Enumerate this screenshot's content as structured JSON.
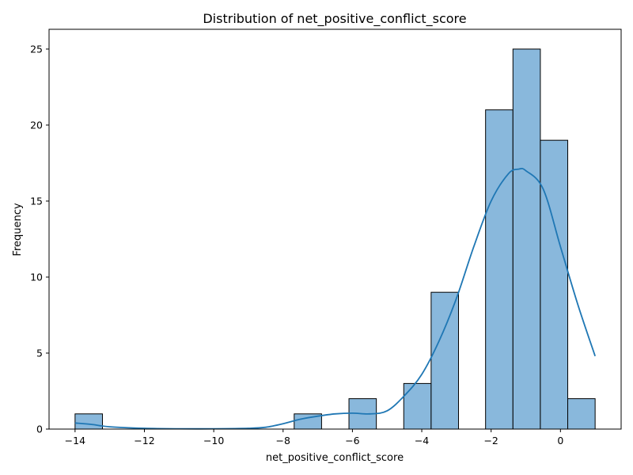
{
  "chart_data": {
    "type": "bar",
    "subtype": "histogram-with-kde",
    "title": "Distribution of net_positive_conflict_score",
    "xlabel": "net_positive_conflict_score",
    "ylabel": "Frequency",
    "xlim": [
      -14.75,
      1.75
    ],
    "ylim": [
      0,
      26.3
    ],
    "x_ticks": [
      -14,
      -12,
      -10,
      -8,
      -6,
      -4,
      -2,
      0
    ],
    "y_ticks": [
      0,
      5,
      10,
      15,
      20,
      25
    ],
    "bin_width": 0.79,
    "bins": [
      {
        "start": -14.0,
        "end": -13.21,
        "count": 1
      },
      {
        "start": -7.68,
        "end": -6.89,
        "count": 1
      },
      {
        "start": -6.1,
        "end": -5.31,
        "count": 2
      },
      {
        "start": -4.52,
        "end": -3.73,
        "count": 3
      },
      {
        "start": -3.73,
        "end": -2.94,
        "count": 9
      },
      {
        "start": -2.16,
        "end": -1.37,
        "count": 21
      },
      {
        "start": -1.37,
        "end": -0.58,
        "count": 25
      },
      {
        "start": -0.58,
        "end": 0.21,
        "count": 19
      },
      {
        "start": 0.21,
        "end": 1.0,
        "count": 2
      }
    ],
    "kde": {
      "x": [
        -14,
        -13.5,
        -13,
        -12,
        -11,
        -10,
        -9,
        -8.5,
        -8,
        -7.5,
        -7,
        -6.5,
        -6,
        -5.5,
        -5,
        -4.5,
        -4,
        -3.5,
        -3,
        -2.5,
        -2,
        -1.5,
        -1.2,
        -1,
        -0.5,
        0,
        0.5,
        1
      ],
      "y": [
        0.4,
        0.3,
        0.15,
        0.05,
        0.02,
        0.02,
        0.05,
        0.12,
        0.35,
        0.65,
        0.85,
        1.0,
        1.05,
        1.0,
        1.2,
        2.2,
        3.6,
        5.8,
        8.6,
        12.0,
        15.0,
        16.8,
        17.1,
        17.0,
        15.8,
        12.0,
        8.2,
        4.8
      ]
    },
    "grid": false,
    "legend": "none",
    "colors": {
      "bar_fill": "#89b8dc",
      "bar_edge": "#000000",
      "kde_line": "#1f77b4"
    }
  }
}
